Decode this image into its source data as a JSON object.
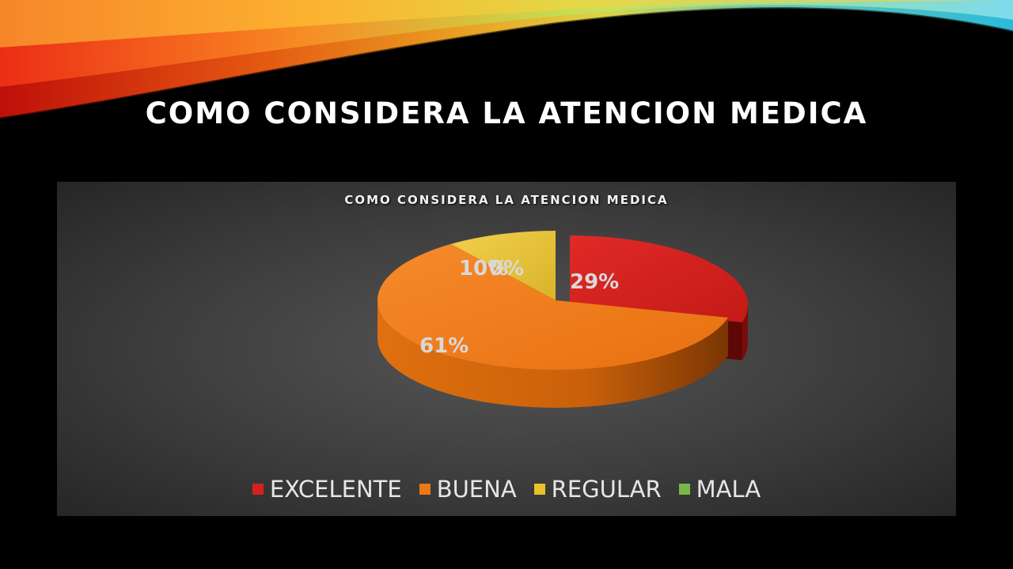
{
  "slide": {
    "title": "COMO CONSIDERA LA ATENCION MEDICA"
  },
  "chart_data": {
    "type": "pie",
    "style": "3d-exploded",
    "title": "COMO CONSIDERA LA ATENCION MEDICA",
    "categories": [
      "EXCELENTE",
      "BUENA",
      "REGULAR",
      "MALA"
    ],
    "values": [
      29,
      61,
      10,
      0
    ],
    "labels": [
      "29%",
      "61%",
      "10%",
      "0%"
    ],
    "colors": [
      "#d92020",
      "#ee7717",
      "#e8c12c",
      "#7ab648"
    ],
    "legend_position": "bottom"
  }
}
